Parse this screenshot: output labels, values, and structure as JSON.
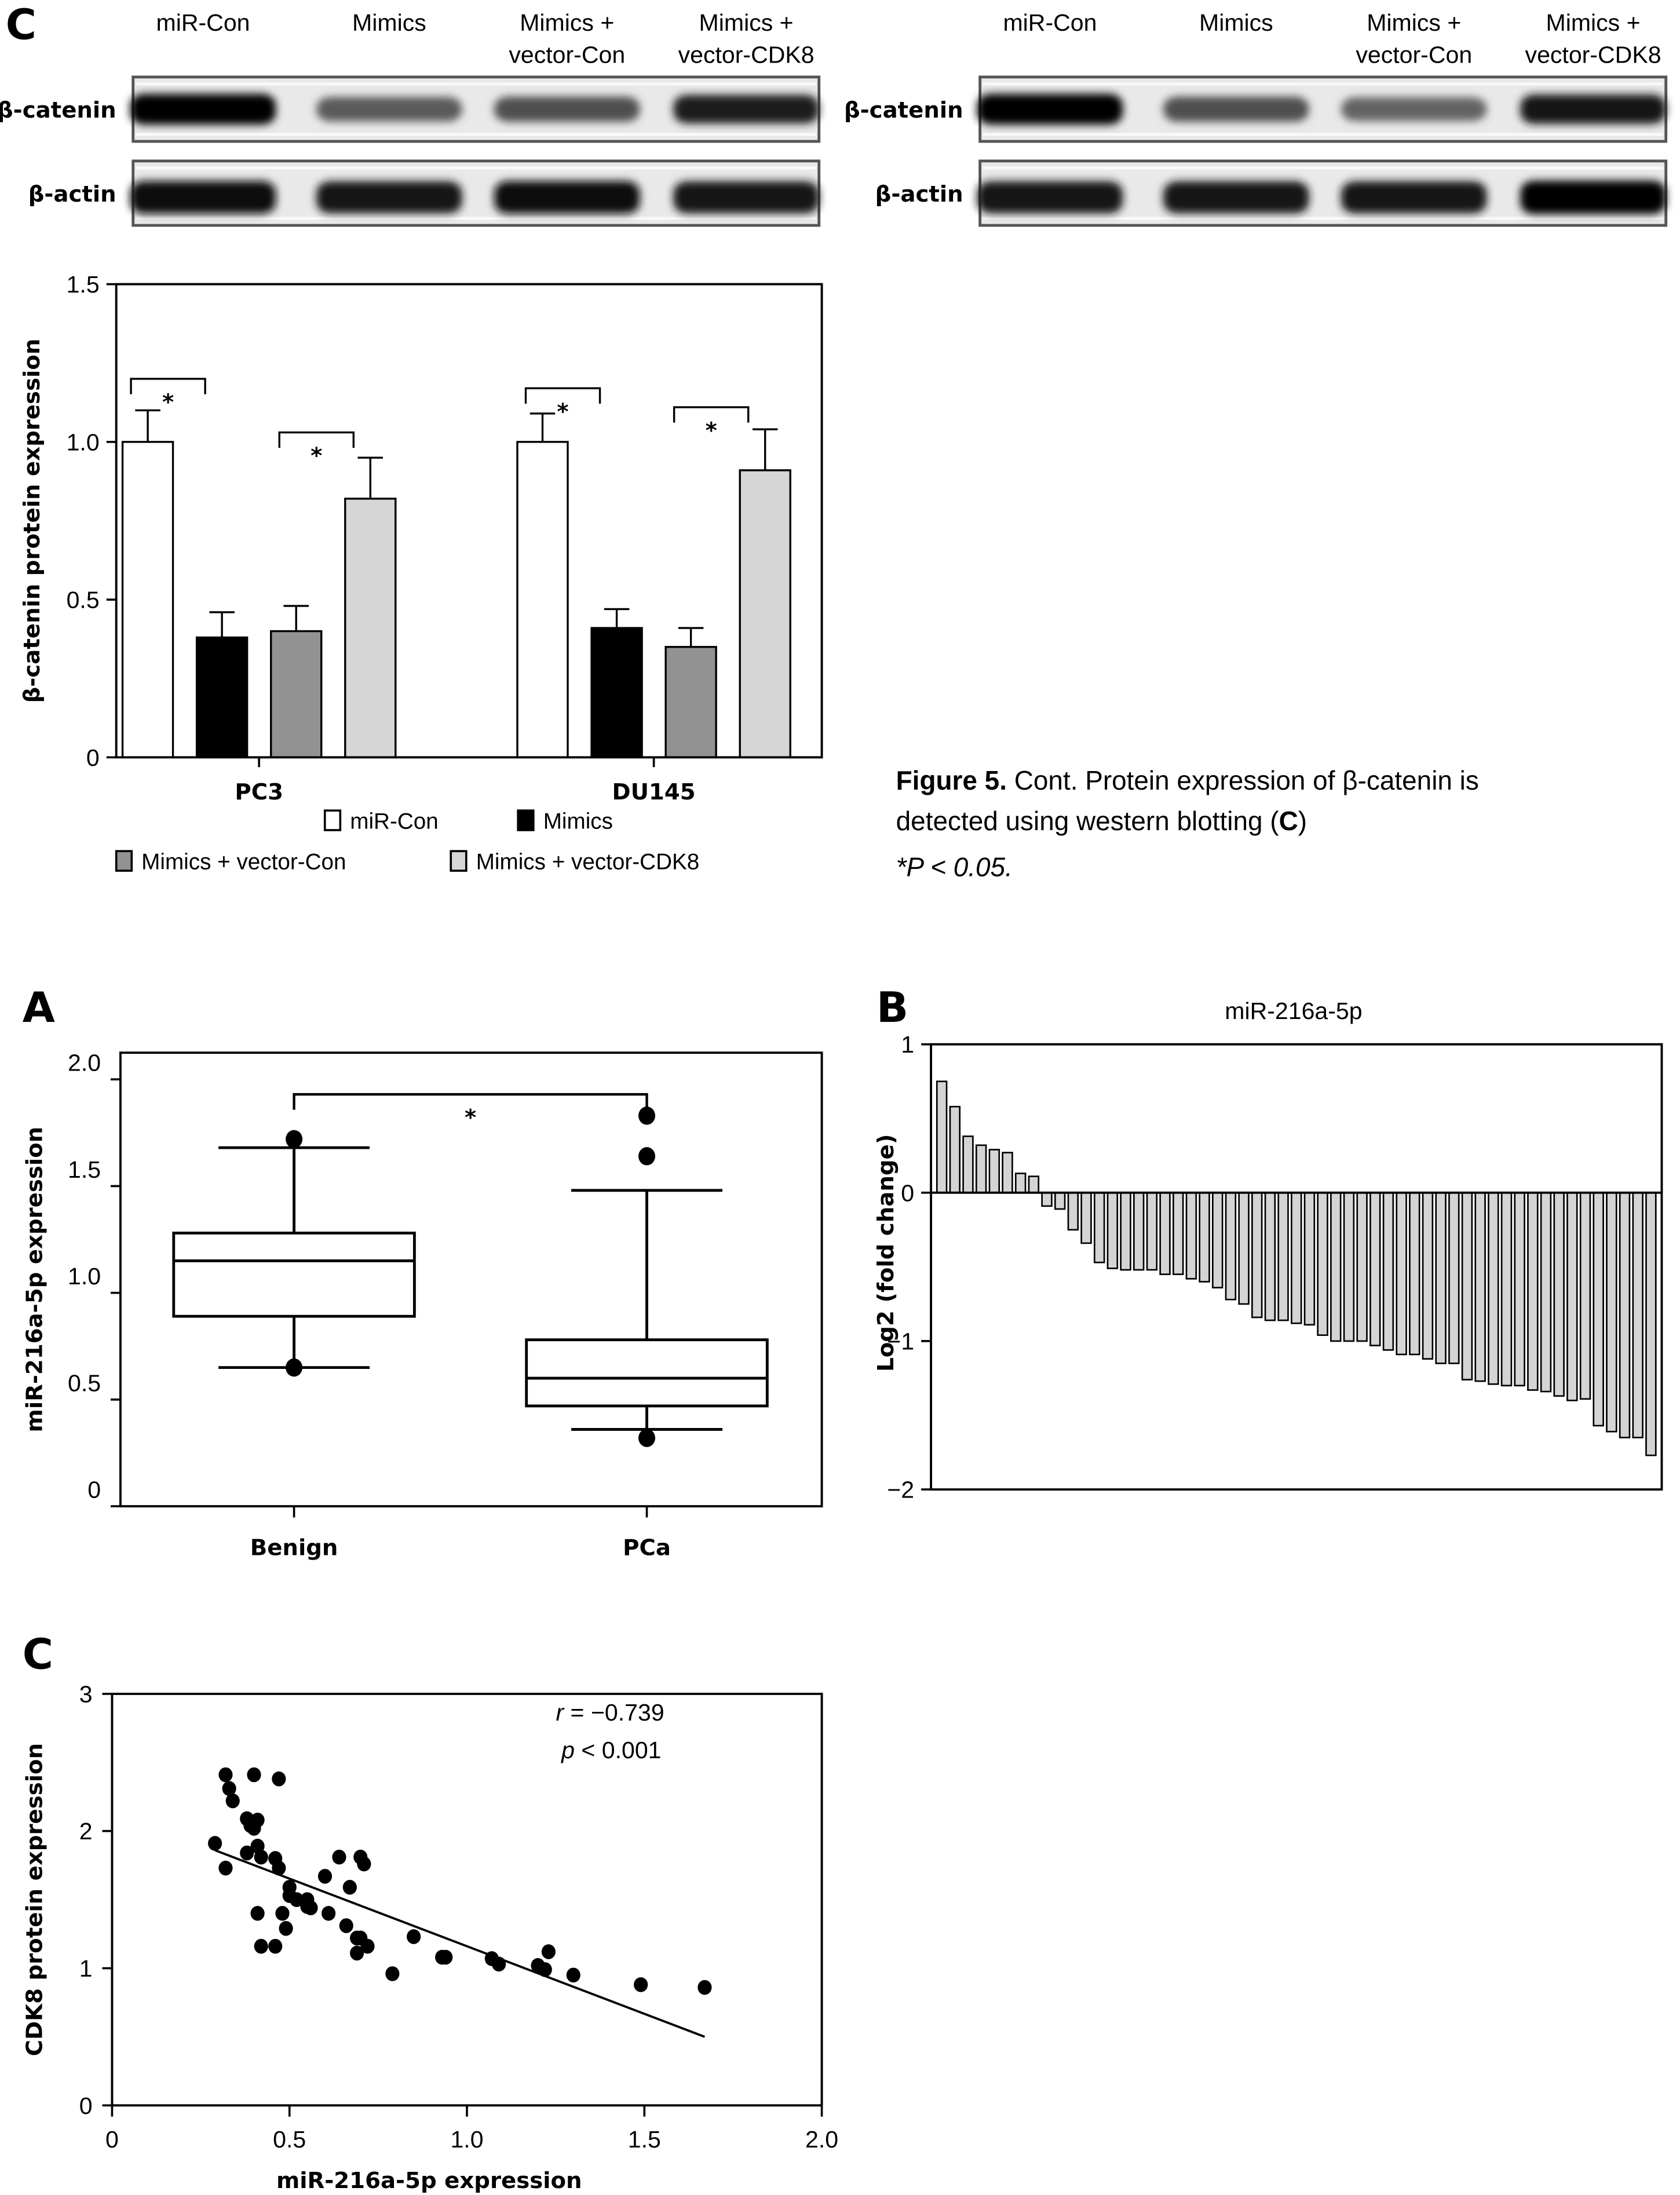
{
  "blots": {
    "panel_letter": "C",
    "lane_labels": [
      [
        "miR-Con"
      ],
      [
        "Mimics"
      ],
      [
        "Mimics +",
        "vector-Con"
      ],
      [
        "Mimics +",
        "vector-CDK8"
      ]
    ],
    "row_labels": [
      "β-catenin",
      "β-actin"
    ],
    "cell_lines": [
      "PC3",
      "DU145"
    ],
    "band_intensity": {
      "PC3": {
        "beta_catenin": [
          1.0,
          0.55,
          0.6,
          0.85
        ],
        "beta_actin": [
          0.95,
          0.9,
          0.95,
          0.9
        ]
      },
      "DU145": {
        "beta_catenin": [
          1.0,
          0.6,
          0.5,
          0.9
        ],
        "beta_actin": [
          0.9,
          0.9,
          0.9,
          1.0
        ]
      }
    }
  },
  "caption": {
    "bold": "Figure 5.",
    "text1": " Cont. Protein expression of β-catenin is",
    "text2a": "detected using western blotting (",
    "text2b": "C",
    "text2c": ")",
    "footnote": "*P < 0.05."
  },
  "panel_letters": {
    "A": "A",
    "B": "B",
    "C": "C"
  },
  "chart_data": [
    {
      "id": "beta-catenin-bar",
      "type": "bar",
      "title": "",
      "xlabel": "",
      "ylabel": "β-catenin protein expression",
      "ylim": [
        0,
        1.5
      ],
      "yticks": [
        0,
        0.5,
        1.0,
        1.5
      ],
      "ytick_labels": [
        "0",
        "0.5",
        "1.0",
        "1.5"
      ],
      "categories": [
        "PC3",
        "DU145"
      ],
      "series": [
        {
          "name": "miR-Con",
          "color": "#ffffff",
          "values": [
            1.0,
            1.0
          ],
          "errors": [
            0.1,
            0.09
          ]
        },
        {
          "name": "Mimics",
          "color": "#000000",
          "values": [
            0.38,
            0.41
          ],
          "errors": [
            0.08,
            0.06
          ]
        },
        {
          "name": "Mimics + vector-Con",
          "color": "#929292",
          "values": [
            0.4,
            0.35
          ],
          "errors": [
            0.08,
            0.06
          ]
        },
        {
          "name": "Mimics + vector-CDK8",
          "color": "#d6d6d6",
          "values": [
            0.82,
            0.91
          ],
          "errors": [
            0.13,
            0.13
          ]
        }
      ],
      "significance": [
        {
          "category": "PC3",
          "from": 0,
          "to": 1,
          "level": 1.2,
          "label": "*"
        },
        {
          "category": "PC3",
          "from": 2,
          "to": 3,
          "level": 1.03,
          "label": "*"
        },
        {
          "category": "DU145",
          "from": 0,
          "to": 1,
          "level": 1.17,
          "label": "*"
        },
        {
          "category": "DU145",
          "from": 2,
          "to": 3,
          "level": 1.11,
          "label": "*"
        }
      ],
      "legend": [
        "miR-Con",
        "Mimics",
        "Mimics + vector-Con",
        "Mimics + vector-CDK8"
      ],
      "legend_position": "bottom",
      "grid": false
    },
    {
      "id": "boxplot-A",
      "type": "box",
      "ylabel": "miR-216a-5p expression",
      "ylim": [
        0,
        2.125
      ],
      "yticks": [
        0,
        0.5,
        1.0,
        1.5,
        2.0
      ],
      "ytick_labels": [
        "0",
        "0.5",
        "1.0",
        "1.5",
        "2.0"
      ],
      "categories": [
        "Benign",
        "PCa"
      ],
      "boxes": [
        {
          "name": "Benign",
          "whisker_low": 0.65,
          "q1": 0.89,
          "median": 1.15,
          "q3": 1.28,
          "whisker_high": 1.68,
          "outliers": [
            1.72,
            0.65
          ]
        },
        {
          "name": "PCa",
          "whisker_low": 0.36,
          "q1": 0.47,
          "median": 0.6,
          "q3": 0.78,
          "whisker_high": 1.48,
          "outliers": [
            1.83,
            1.64,
            0.32
          ]
        }
      ],
      "significance": {
        "from": "Benign",
        "to": "PCa",
        "level": 1.93,
        "label": "*"
      },
      "grid": false
    },
    {
      "id": "waterfall-B",
      "type": "bar",
      "title": "miR-216a-5p",
      "ylabel": "Log2 (fold change)",
      "ylim": [
        -2,
        1
      ],
      "yticks": [
        -2,
        -1,
        0,
        1
      ],
      "ytick_labels": [
        "−2",
        "−1",
        "0",
        "1"
      ],
      "bar_color": "#d4d4d4",
      "values": [
        0.75,
        0.58,
        0.38,
        0.32,
        0.29,
        0.27,
        0.13,
        0.11,
        -0.09,
        -0.11,
        -0.25,
        -0.34,
        -0.47,
        -0.51,
        -0.52,
        -0.52,
        -0.52,
        -0.55,
        -0.55,
        -0.58,
        -0.6,
        -0.64,
        -0.72,
        -0.75,
        -0.84,
        -0.86,
        -0.86,
        -0.88,
        -0.89,
        -0.96,
        -1.0,
        -1.0,
        -1.0,
        -1.03,
        -1.06,
        -1.09,
        -1.09,
        -1.12,
        -1.15,
        -1.15,
        -1.26,
        -1.27,
        -1.29,
        -1.3,
        -1.3,
        -1.33,
        -1.34,
        -1.37,
        -1.4,
        -1.39,
        -1.57,
        -1.61,
        -1.65,
        -1.65,
        -1.77
      ],
      "grid": false
    },
    {
      "id": "scatter-C",
      "type": "scatter",
      "xlabel": "miR-216a-5p expression",
      "ylabel": "CDK8 protein expression",
      "xlim": [
        0,
        2.0
      ],
      "ylim": [
        0,
        3
      ],
      "xticks": [
        0,
        0.5,
        1.0,
        1.5,
        2.0
      ],
      "xtick_labels": [
        "0",
        "0.5",
        "1.0",
        "1.5",
        "2.0"
      ],
      "yticks": [
        0,
        1,
        2,
        3
      ],
      "ytick_labels": [
        "0",
        "1",
        "2",
        "3"
      ],
      "annotation": {
        "r_label": "r",
        "r_value": " = −0.739",
        "p_label": "p",
        "p_value": " < 0.001"
      },
      "points": [
        [
          0.29,
          1.91
        ],
        [
          0.32,
          2.41
        ],
        [
          0.33,
          2.31
        ],
        [
          0.34,
          2.22
        ],
        [
          0.32,
          1.73
        ],
        [
          0.38,
          2.09
        ],
        [
          0.39,
          2.04
        ],
        [
          0.4,
          2.02
        ],
        [
          0.41,
          2.08
        ],
        [
          0.4,
          2.41
        ],
        [
          0.47,
          2.38
        ],
        [
          0.38,
          1.84
        ],
        [
          0.41,
          1.89
        ],
        [
          0.42,
          1.81
        ],
        [
          0.46,
          1.8
        ],
        [
          0.47,
          1.73
        ],
        [
          0.41,
          1.4
        ],
        [
          0.42,
          1.16
        ],
        [
          0.46,
          1.16
        ],
        [
          0.48,
          1.4
        ],
        [
          0.49,
          1.29
        ],
        [
          0.5,
          1.59
        ],
        [
          0.5,
          1.53
        ],
        [
          0.52,
          1.5
        ],
        [
          0.55,
          1.5
        ],
        [
          0.55,
          1.45
        ],
        [
          0.56,
          1.44
        ],
        [
          0.6,
          1.67
        ],
        [
          0.61,
          1.4
        ],
        [
          0.64,
          1.81
        ],
        [
          0.67,
          1.59
        ],
        [
          0.66,
          1.31
        ],
        [
          0.7,
          1.81
        ],
        [
          0.71,
          1.76
        ],
        [
          0.69,
          1.22
        ],
        [
          0.7,
          1.22
        ],
        [
          0.72,
          1.16
        ],
        [
          0.69,
          1.11
        ],
        [
          0.79,
          0.96
        ],
        [
          0.85,
          1.23
        ],
        [
          0.93,
          1.08
        ],
        [
          0.94,
          1.08
        ],
        [
          1.07,
          1.07
        ],
        [
          1.09,
          1.03
        ],
        [
          1.2,
          1.02
        ],
        [
          1.22,
          0.99
        ],
        [
          1.23,
          1.12
        ],
        [
          1.3,
          0.95
        ],
        [
          1.49,
          0.88
        ],
        [
          1.67,
          0.86
        ]
      ],
      "regression": {
        "x": [
          0.29,
          1.67
        ],
        "y": [
          1.86,
          0.5
        ]
      },
      "grid": false
    }
  ]
}
